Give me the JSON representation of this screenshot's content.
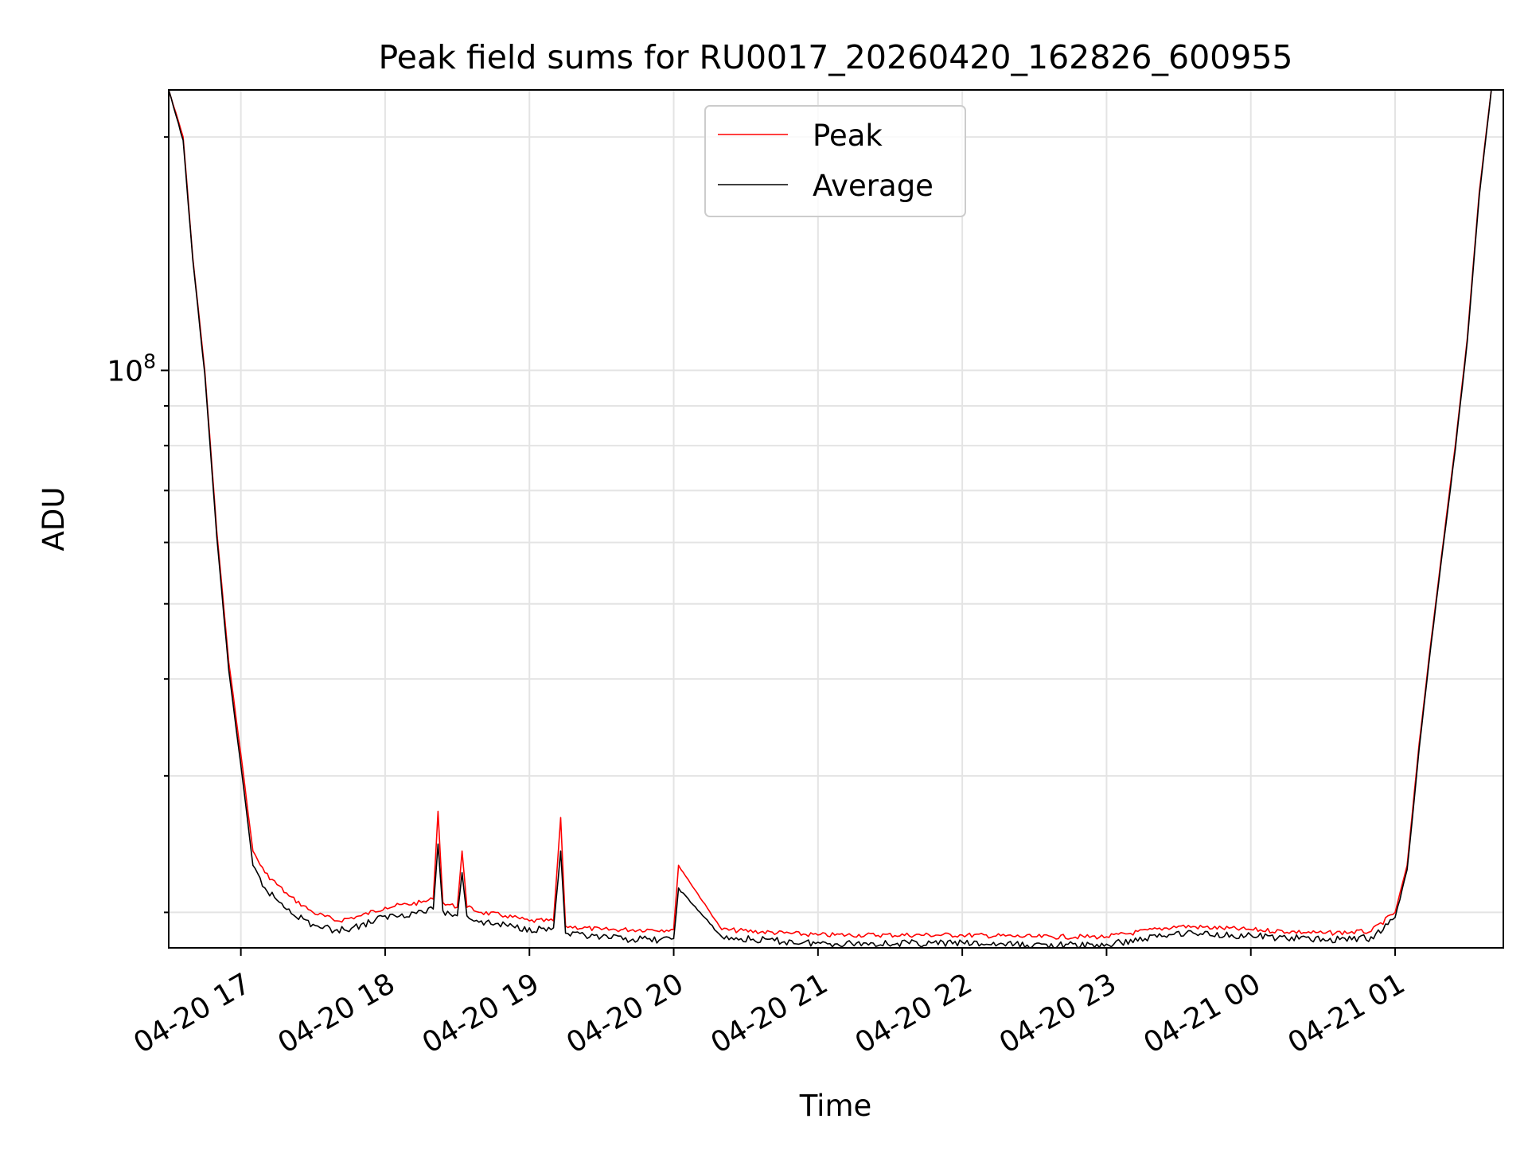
{
  "chart_data": {
    "type": "line",
    "title": "Peak field sums for RU0017_20260420_162826_600955",
    "xlabel": "Time",
    "ylabel": "ADU",
    "yscale": "log",
    "ylim": [
      18000000,
      230000000
    ],
    "xlim": [
      "04-20 16:30",
      "04-21 01:45"
    ],
    "x_ticks": [
      "04-20 17",
      "04-20 18",
      "04-20 19",
      "04-20 20",
      "04-20 21",
      "04-20 22",
      "04-20 23",
      "04-21 00",
      "04-21 01"
    ],
    "x_tick_values": [
      "04-20 17:00",
      "04-20 18:00",
      "04-20 19:00",
      "04-20 20:00",
      "04-20 21:00",
      "04-20 22:00",
      "04-20 23:00",
      "04-21 00:00",
      "04-21 01:00"
    ],
    "y_major_ticks": [
      {
        "value": 100000000,
        "label_base": "10",
        "label_exp": "8"
      }
    ],
    "y_minor_ticks": [
      20000000,
      30000000,
      40000000,
      50000000,
      60000000,
      70000000,
      80000000,
      90000000,
      200000000
    ],
    "grid": true,
    "legend": {
      "position": "top-center"
    },
    "series": [
      {
        "name": "Peak",
        "color": "#ff0000",
        "x": [
          "04-20 16:30",
          "04-20 16:36",
          "04-20 16:40",
          "04-20 16:45",
          "04-20 16:50",
          "04-20 16:55",
          "04-20 17:00",
          "04-20 17:05",
          "04-20 17:10",
          "04-20 17:20",
          "04-20 17:30",
          "04-20 17:40",
          "04-20 17:50",
          "04-20 18:00",
          "04-20 18:15",
          "04-20 18:20",
          "04-20 18:22",
          "04-20 18:24",
          "04-20 18:30",
          "04-20 18:32",
          "04-20 18:34",
          "04-20 18:40",
          "04-20 18:50",
          "04-20 19:00",
          "04-20 19:10",
          "04-20 19:13",
          "04-20 19:15",
          "04-20 19:30",
          "04-20 19:50",
          "04-20 20:00",
          "04-20 20:02",
          "04-20 20:20",
          "04-20 21:00",
          "04-20 22:00",
          "04-20 22:30",
          "04-20 23:00",
          "04-20 23:30",
          "04-21 00:00",
          "04-21 00:30",
          "04-21 00:50",
          "04-21 01:00",
          "04-21 01:05",
          "04-21 01:10",
          "04-21 01:15",
          "04-21 01:20",
          "04-21 01:25",
          "04-21 01:30",
          "04-21 01:35",
          "04-21 01:40"
        ],
        "values": [
          230000000,
          200000000,
          140000000,
          100000000,
          62000000,
          42000000,
          32000000,
          24000000,
          22500000,
          21000000,
          20000000,
          19500000,
          19800000,
          20300000,
          20600000,
          20800000,
          27000000,
          20600000,
          20300000,
          24000000,
          20300000,
          20000000,
          19800000,
          19500000,
          19500000,
          26500000,
          19200000,
          19000000,
          19000000,
          19000000,
          23000000,
          19000000,
          18700000,
          18700000,
          18600000,
          18600000,
          19200000,
          19000000,
          18800000,
          18900000,
          20000000,
          23000000,
          33000000,
          45000000,
          60000000,
          80000000,
          110000000,
          170000000,
          230000000
        ]
      },
      {
        "name": "Average",
        "color": "#000000",
        "x": [
          "04-20 16:30",
          "04-20 16:36",
          "04-20 16:40",
          "04-20 16:45",
          "04-20 16:50",
          "04-20 16:55",
          "04-20 17:00",
          "04-20 17:05",
          "04-20 17:10",
          "04-20 17:20",
          "04-20 17:30",
          "04-20 17:40",
          "04-20 17:50",
          "04-20 18:00",
          "04-20 18:15",
          "04-20 18:20",
          "04-20 18:22",
          "04-20 18:24",
          "04-20 18:30",
          "04-20 18:32",
          "04-20 18:34",
          "04-20 18:40",
          "04-20 18:50",
          "04-20 19:00",
          "04-20 19:10",
          "04-20 19:13",
          "04-20 19:15",
          "04-20 19:30",
          "04-20 19:50",
          "04-20 20:00",
          "04-20 20:02",
          "04-20 20:20",
          "04-20 21:00",
          "04-20 22:00",
          "04-20 22:30",
          "04-20 23:00",
          "04-20 23:30",
          "04-21 00:00",
          "04-21 00:30",
          "04-21 00:50",
          "04-21 01:00",
          "04-21 01:05",
          "04-21 01:10",
          "04-21 01:15",
          "04-21 01:20",
          "04-21 01:25",
          "04-21 01:30",
          "04-21 01:35",
          "04-21 01:40"
        ],
        "values": [
          230000000,
          198000000,
          139000000,
          99000000,
          61000000,
          41000000,
          31000000,
          23000000,
          21500000,
          20200000,
          19300000,
          19000000,
          19300000,
          19800000,
          20100000,
          20200000,
          24500000,
          20100000,
          19800000,
          22500000,
          19800000,
          19500000,
          19300000,
          19100000,
          19100000,
          24000000,
          18800000,
          18600000,
          18500000,
          18500000,
          21500000,
          18600000,
          18300000,
          18300000,
          18200000,
          18200000,
          18900000,
          18700000,
          18500000,
          18600000,
          19700000,
          22700000,
          32500000,
          44500000,
          59500000,
          79000000,
          109000000,
          168000000,
          230000000
        ]
      }
    ]
  }
}
